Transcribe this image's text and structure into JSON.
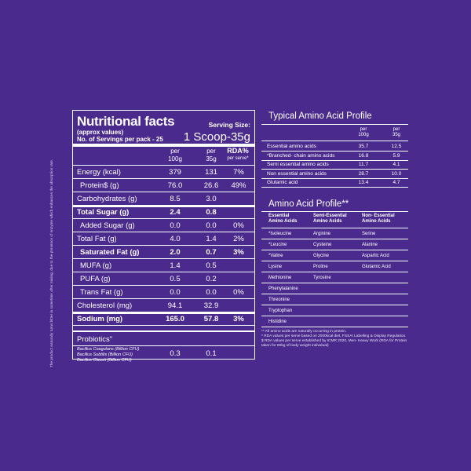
{
  "side_note": "The product naturally turns bitter in sometime after mixing, due to the presence of enzyme which enhances the absorption rate.",
  "nutrition": {
    "title": "Nutritional facts",
    "subtitle1": "(approx values)",
    "subtitle2": "No. of Servings per pack - 25",
    "serving_label": "Serving Size:",
    "serving_value": "1 Scoop-35g",
    "col_100": [
      "per",
      "100g"
    ],
    "col_35": [
      "per",
      "35g"
    ],
    "col_rda": [
      "RDA%",
      "per serve*"
    ],
    "rows": [
      {
        "label": "Energy (kcal)",
        "per100": "379",
        "per35": "131",
        "rda": "7%"
      },
      {
        "label": "Protein$ (g)",
        "per100": "76.0",
        "per35": "26.6",
        "rda": "49%"
      },
      {
        "label": "Carbohydrates (g)",
        "per100": "8.5",
        "per35": "3.0",
        "rda": ""
      },
      {
        "label": "Total Sugar (g)",
        "per100": "2.4",
        "per35": "0.8",
        "rda": ""
      },
      {
        "label": "Added Sugar (g)",
        "per100": "0.0",
        "per35": "0.0",
        "rda": "0%"
      },
      {
        "label": "Total Fat (g)",
        "per100": "4.0",
        "per35": "1.4",
        "rda": "2%"
      },
      {
        "label": "Saturated Fat (g)",
        "per100": "2.0",
        "per35": "0.7",
        "rda": "3%"
      },
      {
        "label": "MUFA (g)",
        "per100": "1.4",
        "per35": "0.5",
        "rda": ""
      },
      {
        "label": "PUFA (g)",
        "per100": "0.5",
        "per35": "0.2",
        "rda": ""
      },
      {
        "label": "Trans Fat (g)",
        "per100": "0.0",
        "per35": "0.0",
        "rda": "0%"
      },
      {
        "label": "Cholesterol (mg)",
        "per100": "94.1",
        "per35": "32.9",
        "rda": ""
      },
      {
        "label": "Sodium (mg)",
        "per100": "165.0",
        "per35": "57.8",
        "rda": "3%"
      }
    ],
    "probiotics_label": "Probiotics\"",
    "probiotics_names": [
      "Bacillus Coagulans (Billion CFU)",
      "Bacillus Subtilis (Billion CFU)",
      "Bacillus Clausii (Billion CFU)"
    ],
    "probiotics_per100": "0.3",
    "probiotics_per35": "0.1"
  },
  "amino": {
    "title": "Typical Amino Acid Profile",
    "col1": [
      "per",
      "100g"
    ],
    "col2": [
      "per",
      "35g"
    ],
    "rows": [
      {
        "label": "Essential amino acids",
        "v100": "35.7",
        "v35": "12.5"
      },
      {
        "label": "*Branched- chain amino acids",
        "v100": "16.8",
        "v35": "5.9"
      },
      {
        "label": "Semi essential amino acids",
        "v100": "11.7",
        "v35": "4.1"
      },
      {
        "label": "Non essential amino acids",
        "v100": "28.7",
        "v35": "10.0"
      },
      {
        "label": "Glutamic acid",
        "v100": "13.4",
        "v35": "4.7"
      }
    ]
  },
  "profile": {
    "title": "Amino Acid Profile**",
    "head1": [
      "Essential",
      "Amino Acids"
    ],
    "head2": [
      "Semi-Essential",
      "Amino Acids"
    ],
    "head3": [
      "Non- Essential",
      "Amino Acids"
    ],
    "rows": [
      [
        "*Isoleucine",
        "Arginine",
        "Serine"
      ],
      [
        "*Leucine",
        "Cysteine",
        "Alanine"
      ],
      [
        "*Valine",
        "Glycine",
        "Aspartic Acid"
      ],
      [
        "Lysine",
        "Proline",
        "Glutamic Acid"
      ],
      [
        "Methionine",
        "Tyrosine",
        ""
      ],
      [
        "Phenylalanine",
        "",
        ""
      ],
      [
        "Threonine",
        "",
        ""
      ],
      [
        "Tryptophan",
        "",
        ""
      ],
      [
        "Histidine",
        "",
        ""
      ]
    ]
  },
  "notes": [
    "** All amino acids are naturally occurring in protein.",
    "* RDA values per serve based on 2000kcal diet, FSSAI Labelling & Display Regulation.",
    "$ RDA values per serve established by ICMR 2020, Men- Heavy Work (RDA for Protein taken for 60kg of body weight individual)"
  ]
}
